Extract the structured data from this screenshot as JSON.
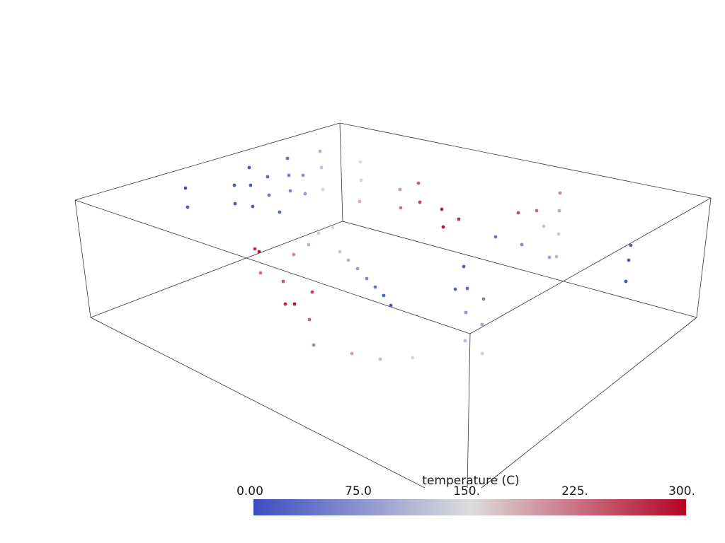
{
  "scalar_bar": {
    "title": "temperature (C)",
    "ticks": [
      "0.00",
      "75.0",
      "150.",
      "225.",
      "300."
    ],
    "range": [
      0,
      300
    ],
    "colors": {
      "low": "#3b4cc0",
      "mid": "#dddddd",
      "high": "#b40426"
    }
  },
  "points": [
    {
      "v": 5
    },
    {
      "v": 8
    },
    {
      "v": 10
    },
    {
      "v": 6
    },
    {
      "v": 12
    },
    {
      "v": 15
    },
    {
      "v": 20
    },
    {
      "v": 30
    },
    {
      "v": 40
    },
    {
      "v": 25
    },
    {
      "v": 35
    },
    {
      "v": 50
    },
    {
      "v": 60
    },
    {
      "v": 70
    },
    {
      "v": 80
    },
    {
      "v": 100
    },
    {
      "v": 120
    },
    {
      "v": 140
    },
    {
      "v": 150
    },
    {
      "v": 160
    },
    {
      "v": 180
    },
    {
      "v": 200
    },
    {
      "v": 220
    },
    {
      "v": 240
    },
    {
      "v": 260
    },
    {
      "v": 280
    },
    {
      "v": 290
    },
    {
      "v": 270
    },
    {
      "v": 250
    },
    {
      "v": 230
    },
    {
      "v": 210
    },
    {
      "v": 190
    },
    {
      "v": 170
    },
    {
      "v": 130
    },
    {
      "v": 110
    },
    {
      "v": 90
    },
    {
      "v": 65
    },
    {
      "v": 45
    },
    {
      "v": 20
    },
    {
      "v": 10
    },
    {
      "v": 5
    },
    {
      "v": 15
    },
    {
      "v": 25
    },
    {
      "v": 35
    },
    {
      "v": 55
    },
    {
      "v": 75
    },
    {
      "v": 95
    },
    {
      "v": 115
    },
    {
      "v": 135
    },
    {
      "v": 155
    },
    {
      "v": 175
    },
    {
      "v": 195
    },
    {
      "v": 215
    },
    {
      "v": 235
    },
    {
      "v": 255
    },
    {
      "v": 275
    },
    {
      "v": 295
    },
    {
      "v": 285
    },
    {
      "v": 265
    },
    {
      "v": 245
    },
    {
      "v": 225
    },
    {
      "v": 205
    },
    {
      "v": 185
    },
    {
      "v": 165
    },
    {
      "v": 145
    },
    {
      "v": 125
    },
    {
      "v": 105
    },
    {
      "v": 85
    },
    {
      "v": 60
    },
    {
      "v": 40
    },
    {
      "v": 22
    },
    {
      "v": 12
    }
  ]
}
